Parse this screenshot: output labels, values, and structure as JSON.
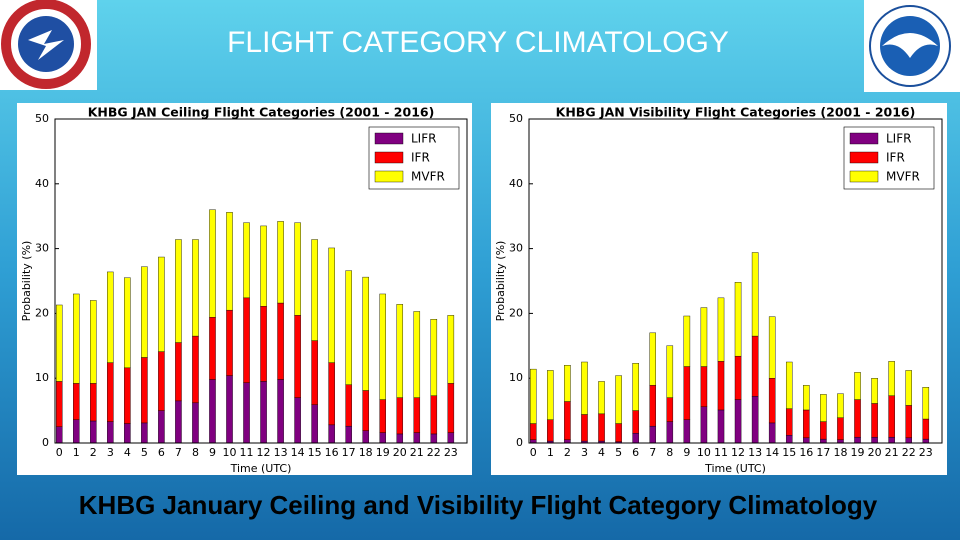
{
  "title": "FLIGHT CATEGORY CLIMATOLOGY",
  "caption": "KHBG January Ceiling and Visibility Flight Category Climatology",
  "chart_data": [
    {
      "type": "bar",
      "stacked": true,
      "title": "KHBG JAN Ceiling Flight Categories (2001 - 2016)",
      "xlabel": "Time (UTC)",
      "ylabel": "Probability (%)",
      "categories": [
        "0",
        "1",
        "2",
        "3",
        "4",
        "5",
        "6",
        "7",
        "8",
        "9",
        "10",
        "11",
        "12",
        "13",
        "14",
        "15",
        "16",
        "17",
        "18",
        "19",
        "20",
        "21",
        "22",
        "23"
      ],
      "series": [
        {
          "name": "LIFR",
          "color": "#800080",
          "values": [
            2.5,
            3.6,
            3.4,
            3.3,
            3.0,
            3.1,
            5.0,
            6.5,
            6.2,
            9.8,
            10.4,
            9.3,
            9.5,
            9.8,
            7.0,
            5.9,
            2.8,
            2.6,
            1.9,
            1.6,
            1.4,
            1.6,
            1.4,
            1.6
          ]
        },
        {
          "name": "IFR",
          "color": "#ff0000",
          "values": [
            7.0,
            5.6,
            5.8,
            9.1,
            8.6,
            10.1,
            9.1,
            9.0,
            10.3,
            9.6,
            10.1,
            13.1,
            11.6,
            11.8,
            12.7,
            9.9,
            9.6,
            6.4,
            6.2,
            5.1,
            5.6,
            5.4,
            5.9,
            7.6
          ]
        },
        {
          "name": "MVFR",
          "color": "#ffff00",
          "values": [
            11.8,
            13.8,
            12.8,
            14.0,
            13.9,
            14.0,
            14.6,
            15.9,
            14.9,
            16.6,
            15.1,
            11.6,
            12.4,
            12.6,
            14.3,
            15.6,
            17.7,
            17.6,
            17.5,
            16.3,
            14.4,
            13.3,
            11.8,
            10.5
          ]
        }
      ],
      "ylim": [
        0,
        50
      ],
      "yticks": [
        0,
        10,
        20,
        30,
        40,
        50
      ],
      "legend": "upper right"
    },
    {
      "type": "bar",
      "stacked": true,
      "title": "KHBG JAN Visibility Flight Categories (2001 - 2016)",
      "xlabel": "Time (UTC)",
      "ylabel": "Probability (%)",
      "categories": [
        "0",
        "1",
        "2",
        "3",
        "4",
        "5",
        "6",
        "7",
        "8",
        "9",
        "10",
        "11",
        "12",
        "13",
        "14",
        "15",
        "16",
        "17",
        "18",
        "19",
        "20",
        "21",
        "22",
        "23"
      ],
      "series": [
        {
          "name": "LIFR",
          "color": "#800080",
          "values": [
            0.5,
            0.3,
            0.5,
            0.3,
            0.3,
            0.2,
            1.5,
            2.6,
            3.3,
            3.6,
            5.6,
            5.1,
            6.7,
            7.2,
            3.1,
            1.2,
            0.8,
            0.6,
            0.5,
            0.9,
            0.9,
            0.9,
            0.8,
            0.6
          ]
        },
        {
          "name": "IFR",
          "color": "#ff0000",
          "values": [
            2.5,
            3.3,
            5.9,
            4.1,
            4.2,
            2.8,
            3.5,
            6.3,
            3.7,
            8.2,
            6.2,
            7.5,
            6.7,
            9.3,
            6.9,
            4.1,
            4.3,
            2.7,
            3.4,
            5.8,
            5.2,
            6.4,
            5.0,
            3.1
          ]
        },
        {
          "name": "MVFR",
          "color": "#ffff00",
          "values": [
            8.4,
            7.6,
            5.6,
            8.1,
            5.0,
            7.4,
            7.3,
            8.1,
            8.0,
            7.8,
            9.1,
            9.8,
            11.4,
            12.9,
            9.5,
            7.2,
            3.8,
            4.2,
            3.7,
            4.2,
            3.9,
            5.3,
            5.4,
            4.9
          ]
        }
      ],
      "ylim": [
        0,
        50
      ],
      "yticks": [
        0,
        10,
        20,
        30,
        40,
        50
      ],
      "legend": "upper right"
    }
  ]
}
